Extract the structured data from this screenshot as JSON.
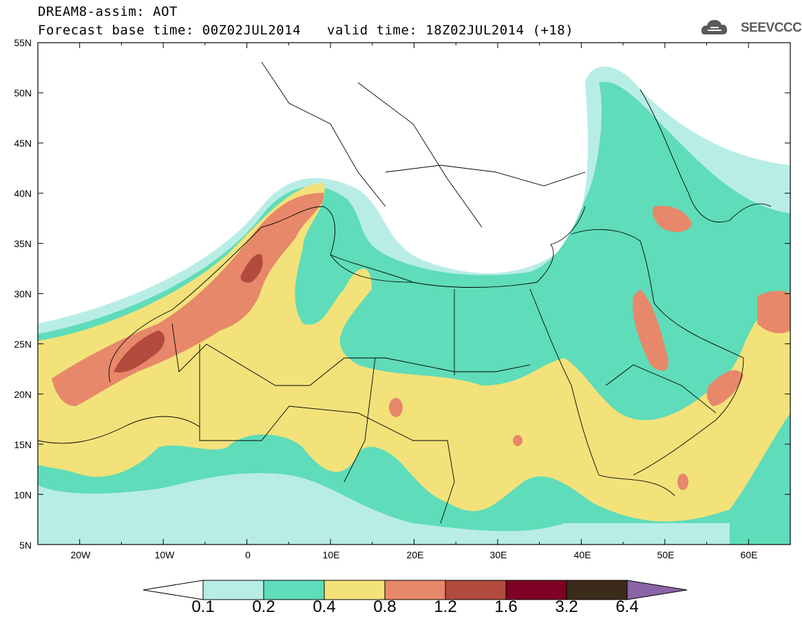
{
  "header": {
    "title": "DREAM8-assim: AOT",
    "base_time": "Forecast base time: 00Z02JUL2014",
    "valid_time": "valid time: 18Z02JUL2014 (+18)",
    "logo_text": "SEEVCCC"
  },
  "map": {
    "lat_labels": [
      "55N",
      "50N",
      "45N",
      "40N",
      "35N",
      "30N",
      "25N",
      "20N",
      "15N",
      "10N",
      "5N"
    ],
    "lon_labels": [
      "20W",
      "10W",
      "0",
      "10E",
      "20E",
      "30E",
      "40E",
      "50E",
      "60E"
    ],
    "lat_range": [
      5,
      55
    ],
    "lon_range": [
      -25,
      65
    ],
    "variable": "Aerosol optical thickness (AOT)"
  },
  "colorbar": {
    "labels": [
      "0.1",
      "0.2",
      "0.4",
      "0.8",
      "1.2",
      "1.6",
      "3.2",
      "6.4"
    ],
    "colors": [
      "#ffffff",
      "#b8ede6",
      "#5fdcb9",
      "#f3e27a",
      "#e7886a",
      "#b24a3d",
      "#7f0025",
      "#3c2a1a",
      "#8a64a6"
    ]
  }
}
